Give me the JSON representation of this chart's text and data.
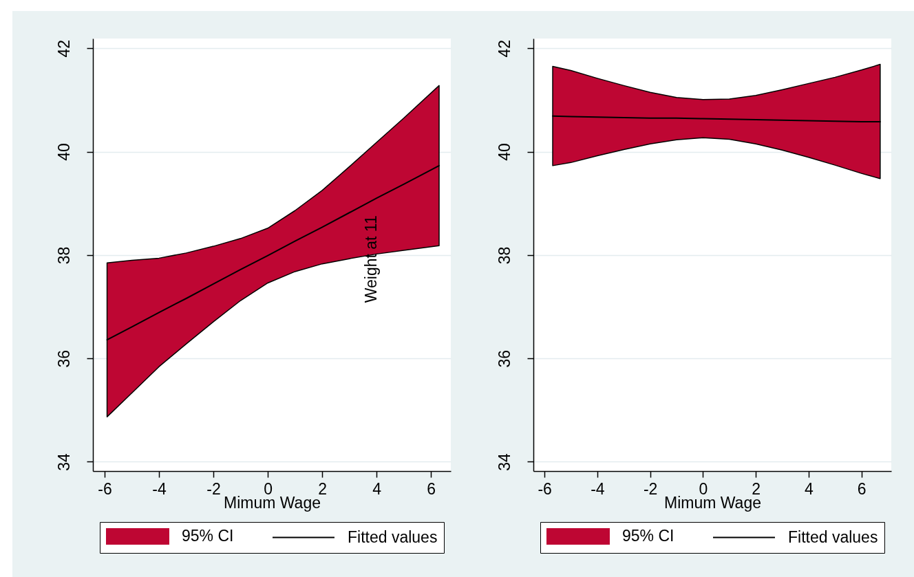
{
  "chart_data": [
    {
      "type": "line",
      "xlabel": "Mimum Wage",
      "ylabel": "Weight at 11",
      "xlim": [
        -6.43,
        6.73
      ],
      "ylim": [
        33.82,
        42.19
      ],
      "xticks": [
        -6,
        -4,
        -2,
        0,
        2,
        4,
        6
      ],
      "yticks": [
        34,
        36,
        38,
        40,
        42
      ],
      "grid": "y",
      "legend": "bottom",
      "series": [
        {
          "name": "95% CI",
          "type": "area",
          "color": "#be0633"
        },
        {
          "name": "Fitted values",
          "type": "line",
          "color": "#000000",
          "x": [
            -5.91,
            -5,
            -4,
            -3,
            -2,
            -1,
            0,
            1,
            2,
            3,
            4,
            5,
            6.3
          ],
          "values": [
            36.36,
            36.61,
            36.89,
            37.16,
            37.44,
            37.72,
            37.99,
            38.27,
            38.54,
            38.82,
            39.1,
            39.37,
            39.73
          ],
          "lower": [
            34.87,
            35.33,
            35.84,
            36.28,
            36.71,
            37.12,
            37.46,
            37.68,
            37.83,
            37.93,
            38.02,
            38.09,
            38.18
          ],
          "upper": [
            37.85,
            37.9,
            37.94,
            38.04,
            38.17,
            38.32,
            38.52,
            38.86,
            39.25,
            39.71,
            40.18,
            40.65,
            41.28
          ]
        }
      ]
    },
    {
      "type": "line",
      "xlabel": "Mimum Wage",
      "xlim": [
        -6.42,
        7.13
      ],
      "ylim": [
        33.82,
        42.19
      ],
      "xticks": [
        -6,
        -4,
        -2,
        0,
        2,
        4,
        6
      ],
      "yticks": [
        34,
        36,
        38,
        40,
        42
      ],
      "grid": "y",
      "legend": "bottom",
      "series": [
        {
          "name": "95% CI",
          "type": "area",
          "color": "#be0633"
        },
        {
          "name": "Fitted values",
          "type": "line",
          "color": "#000000",
          "x": [
            -5.69,
            -5,
            -4,
            -3,
            -2,
            -1,
            0,
            1,
            2,
            3,
            4,
            5,
            6,
            6.71
          ],
          "values": [
            40.69,
            40.68,
            40.67,
            40.66,
            40.65,
            40.65,
            40.64,
            40.63,
            40.62,
            40.61,
            40.6,
            40.59,
            40.58,
            40.58
          ],
          "lower": [
            39.73,
            39.79,
            39.92,
            40.04,
            40.15,
            40.23,
            40.27,
            40.24,
            40.15,
            40.03,
            39.89,
            39.74,
            39.58,
            39.48
          ],
          "upper": [
            41.65,
            41.57,
            41.42,
            41.28,
            41.15,
            41.05,
            41.01,
            41.02,
            41.09,
            41.2,
            41.32,
            41.44,
            41.58,
            41.69
          ]
        }
      ]
    }
  ]
}
